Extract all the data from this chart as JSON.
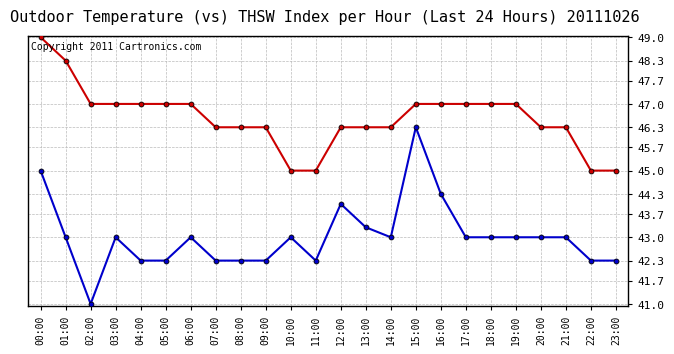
{
  "title": "Outdoor Temperature (vs) THSW Index per Hour (Last 24 Hours) 20111026",
  "copyright_text": "Copyright 2011 Cartronics.com",
  "x_labels": [
    "00:00",
    "01:00",
    "02:00",
    "03:00",
    "04:00",
    "05:00",
    "06:00",
    "07:00",
    "08:00",
    "09:00",
    "10:00",
    "11:00",
    "12:00",
    "13:00",
    "14:00",
    "15:00",
    "16:00",
    "17:00",
    "18:00",
    "19:00",
    "20:00",
    "21:00",
    "22:00",
    "23:00"
  ],
  "red_data": [
    49.0,
    48.3,
    47.0,
    47.0,
    47.0,
    47.0,
    47.0,
    46.3,
    46.3,
    46.3,
    45.0,
    45.0,
    46.3,
    46.3,
    46.3,
    47.0,
    47.0,
    47.0,
    47.0,
    47.0,
    46.3,
    46.3,
    45.0,
    45.0
  ],
  "blue_data": [
    45.0,
    43.0,
    41.0,
    43.0,
    42.3,
    42.3,
    43.0,
    42.3,
    42.3,
    42.3,
    43.0,
    42.3,
    44.0,
    43.3,
    43.0,
    46.3,
    44.3,
    43.0,
    43.0,
    43.0,
    43.0,
    43.0,
    42.3,
    42.3
  ],
  "y_ticks": [
    41.0,
    41.7,
    42.3,
    43.0,
    43.7,
    44.3,
    45.0,
    45.7,
    46.3,
    47.0,
    47.7,
    48.3,
    49.0
  ],
  "ylim": [
    41.0,
    49.0
  ],
  "red_color": "#cc0000",
  "blue_color": "#0000cc",
  "bg_color": "#ffffff",
  "grid_color": "#bbbbbb",
  "title_fontsize": 11,
  "copyright_fontsize": 7,
  "tick_fontsize": 8,
  "xtick_fontsize": 7
}
